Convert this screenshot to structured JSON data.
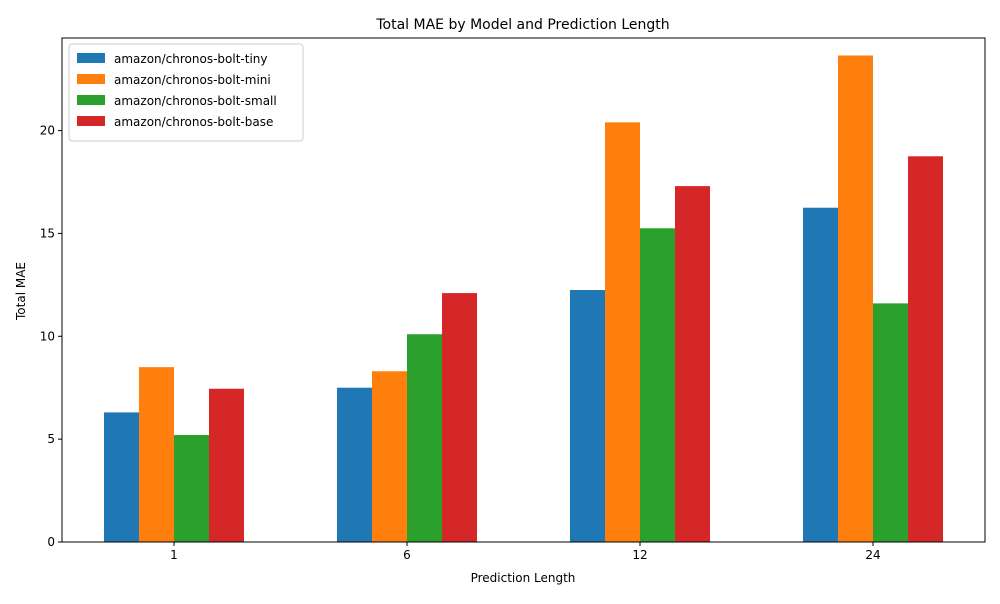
{
  "chart_data": {
    "type": "bar",
    "title": "Total MAE by Model and Prediction Length",
    "xlabel": "Prediction Length",
    "ylabel": "Total MAE",
    "categories": [
      "1",
      "6",
      "12",
      "24"
    ],
    "ylim": [
      0,
      24.5
    ],
    "yticks": [
      0,
      5,
      10,
      15,
      20
    ],
    "grid": false,
    "legend_position": "top-left",
    "series": [
      {
        "name": "amazon/chronos-bolt-tiny",
        "color": "#1f77b4",
        "values": [
          6.3,
          7.5,
          12.25,
          16.25
        ]
      },
      {
        "name": "amazon/chronos-bolt-mini",
        "color": "#ff7f0e",
        "values": [
          8.5,
          8.3,
          20.4,
          23.65
        ]
      },
      {
        "name": "amazon/chronos-bolt-small",
        "color": "#2ca02c",
        "values": [
          5.2,
          10.1,
          15.25,
          11.6
        ]
      },
      {
        "name": "amazon/chronos-bolt-base",
        "color": "#d62728",
        "values": [
          7.45,
          12.1,
          17.3,
          18.75
        ]
      }
    ]
  }
}
